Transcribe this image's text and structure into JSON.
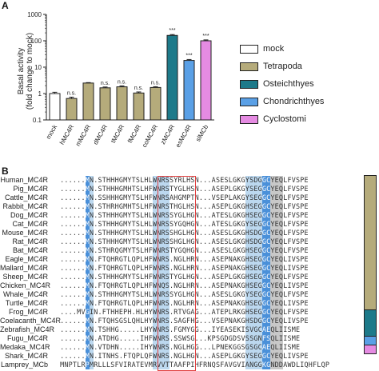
{
  "panel_a_label": "A",
  "panel_b_label": "B",
  "chart_data": {
    "type": "bar",
    "ylabel": "Basal activity\n(fold change to mock)",
    "ylabel_line1": "Basal activity",
    "ylabel_line2": "(fold change to mock)",
    "yscale": "log",
    "ylim": [
      0.1,
      1000
    ],
    "yticks": [
      "1000",
      "100",
      "10",
      "1",
      "0.1"
    ],
    "categories": [
      "mock",
      "hMC4R",
      "mMC4R",
      "dMC4R",
      "tMC4R",
      "fMC4R",
      "coMC4R",
      "zMC4R",
      "esMC4R",
      "slMCb"
    ],
    "values": [
      1.0,
      0.65,
      2.5,
      1.65,
      1.8,
      1.05,
      1.7,
      160,
      18,
      100
    ],
    "errors": [
      0.12,
      0.08,
      0.1,
      0.12,
      0.15,
      0.1,
      0.12,
      12,
      1.5,
      8
    ],
    "significance": [
      "",
      "n.s.",
      "",
      "n.s.",
      "n.s.",
      "n.s.",
      "n.s.",
      "***",
      "***",
      "***"
    ],
    "bar_colors": [
      "#ffffff",
      "#b5ab7b",
      "#b5ab7b",
      "#b5ab7b",
      "#b5ab7b",
      "#b5ab7b",
      "#b5ab7b",
      "#1d7a8a",
      "#5aa0e6",
      "#e58be2"
    ],
    "legend": [
      {
        "label": "mock",
        "color": "#ffffff"
      },
      {
        "label": "Tetrapoda",
        "color": "#b5ab7b"
      },
      {
        "label": "Osteichthyes",
        "color": "#1d7a8a"
      },
      {
        "label": "Chondrichthyes",
        "color": "#5aa0e6"
      },
      {
        "label": "Cyclostomi",
        "color": "#e58be2"
      }
    ]
  },
  "alignment": {
    "species": [
      "Human_MC4R",
      "Pig_MC4R",
      "Cattle_MC4R",
      "Rabbit_MC4R",
      "Dog_MC4R",
      "Cat_MC4R",
      "Mouse_MC4R",
      "Rat_MC4R",
      "Bat_MC4R",
      "Eagle_MC4R",
      "Mallard_MC4R",
      "Sheep_MC4R",
      "Chicken_MC4R",
      "Whale_MC4R",
      "Turtle_MC4R",
      "Frog_MC4R",
      "Coelacanth_MC4R",
      "Zebrafish_MC4R",
      "Fugu_MC4R",
      "Medaka_MC4R",
      "Shark_MC4R",
      "Lamprey_MCb"
    ],
    "sequences": [
      "......MN.STHHHGMYTSLHLWNRSSYRLHSN...ASESLGKGYSDGGCYEQLFVSPE",
      "......MN.STHHHGMHTSLHFWNRSTYGLHSN...ASEPLGKGYSEGGCYEQLFVSPE",
      "......MN.SSHHHGMYTSLHFWNRSAHGMPTN...VSEPLAKGYSEGGCYEQLFVSPE",
      "......MN.STHRHGMHTSLHFWNRSTHGLHSN...ASEPLGKGHSEGGCYEQLFVSPE",
      "......MN.STHHHGMYTSLHLWNRSSYGLHGN...ATESLGKGHSEGGCYEQLFVSPE",
      "......MN.STHHHGMYTSLHLWNRSSYGQHGN...ATESLGKGYSEGGCYEQLFVSPE",
      "......MN.STHHHGMYTSLHLWNRSSHGLHGN...ASESLGKGHSDGGCYEQLFVSPE",
      "......MN.STHHHGMYTSLHLWNRSSHGLHGN...ASESLGKGHSDGGCYEQLFVSPE",
      "......MN.STHRQGMYTSLHFWNRSTYGQHGN...ASESLGKGHSEGGCYEQLFVSPE",
      "......MN.FTQHRGTLQPLHFWNRS.NGLHRN...ASEPNAKGHSEGGCYEQLIVSPE",
      "......MN.FTQHRGTLQPLHFWNRS.NGLHRN...ASEPNAKGHSEGGCYEQLIVSPE",
      "......MN.STHHHGMYTSLHFWNRSTYGLHGN...ASEPLGKGHSEGGCYEQLFVSPE",
      "......MN.FTQHRGTLQPLHFWNQS.NGLHRN...ASEPNAKGHSEGGCYEQLIVSPE",
      "......MN.STHHHGMYTSLHLWNRSSYGLHGN...ASESLGKGYSEGGCYEQLFVSPE",
      "......MN.FTQHRGTLQPLHFWNRS.NGLHRN...ASEPNAKGHSEGGCYEQLIVSPE",
      "....MVGIN.FTHHEPH.HLHYWNRS.RTVGAG...ATEPLRKGHSEGGCYEQLFVSPE",
      "......MN.FTQHSGSLQHLHYWNRS.SAGFHG...VSEPNAKGHSDGGCYEQLIVSPE",
      "......MN.TSHHG.....LHYWNRS.FGMYGG...IYEASEKISVGCAEQLIISME",
      "......MN.ATDHG.....IHFWNRS.SSWSG...KPSGDGDSVSSGNFSQLIISME",
      "......MN.VTDHN.....IHYWNRS.NGLHGG...LPNEKGGSGSGCAEQLIISME",
      "......MN.ITNHS.FTQPLQFWNRS.NGLHGN...ASEPLGKGYSEGGCYEQLIVSPE",
      "MNPTLRPMRLLLSFVIRATEVMRVVTTAAFPIHFRNQSFAVGVIANGGKGNDDAWDLIQHFLQP"
    ],
    "ref_symbol": "MN"
  }
}
